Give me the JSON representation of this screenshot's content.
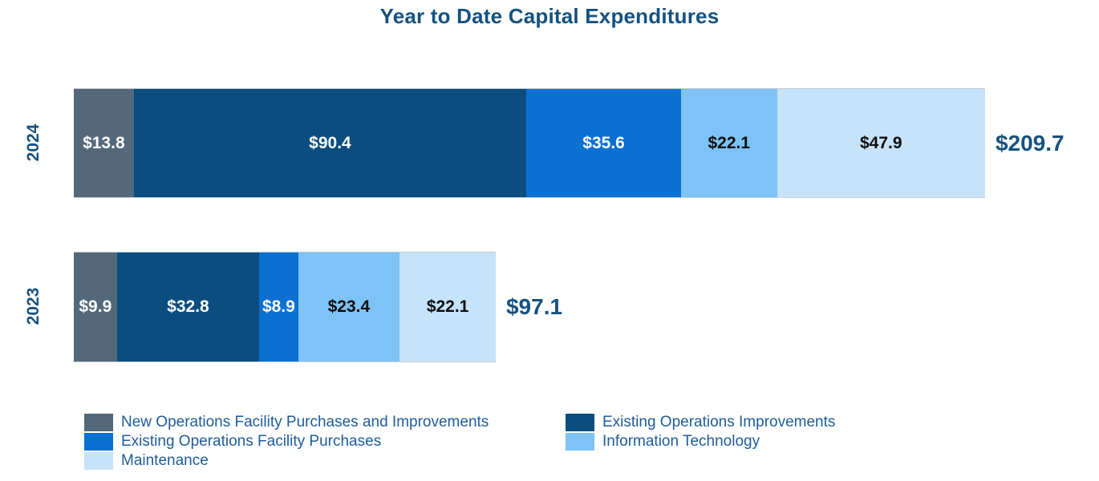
{
  "chart_data": {
    "type": "bar",
    "variant": "horizontal-stacked",
    "title": "Year to Date Capital Expenditures",
    "categories": [
      "2024",
      "2023"
    ],
    "series": [
      {
        "name": "New Operations Facility Purchases and Improvements",
        "color": "#54687B",
        "label_color": "#FFFFFF",
        "values": [
          13.8,
          9.9
        ]
      },
      {
        "name": "Existing Operations Improvements",
        "color": "#0B4D7E",
        "label_color": "#FFFFFF",
        "values": [
          90.4,
          32.8
        ]
      },
      {
        "name": "Existing Operations Facility Purchases",
        "color": "#0A70D1",
        "label_color": "#FFFFFF",
        "values": [
          35.6,
          8.9
        ]
      },
      {
        "name": "Information Technology",
        "color": "#7EC3F6",
        "label_color": "#0D0D0D",
        "values": [
          22.1,
          23.4
        ]
      },
      {
        "name": "Maintenance",
        "color": "#C6E3FA",
        "label_color": "#0D0D0D",
        "values": [
          47.9,
          22.1
        ]
      }
    ],
    "value_labels": [
      [
        "$13.8",
        "$90.4",
        "$35.6",
        "$22.1",
        "$47.9"
      ],
      [
        "$9.9",
        "$32.8",
        "$8.9",
        "$23.4",
        "$22.1"
      ]
    ],
    "totals": [
      209.7,
      97.1
    ],
    "total_labels": [
      "$209.7",
      "$97.1"
    ],
    "legend_position": "bottom",
    "axes": "none (category year labels only, values printed on segments)"
  },
  "colors": {
    "title_text": "#15517F",
    "year_text": "#15517F",
    "total_text": "#15517F",
    "legend_text": "#1E5C9A",
    "background": "#FFFFFF"
  }
}
